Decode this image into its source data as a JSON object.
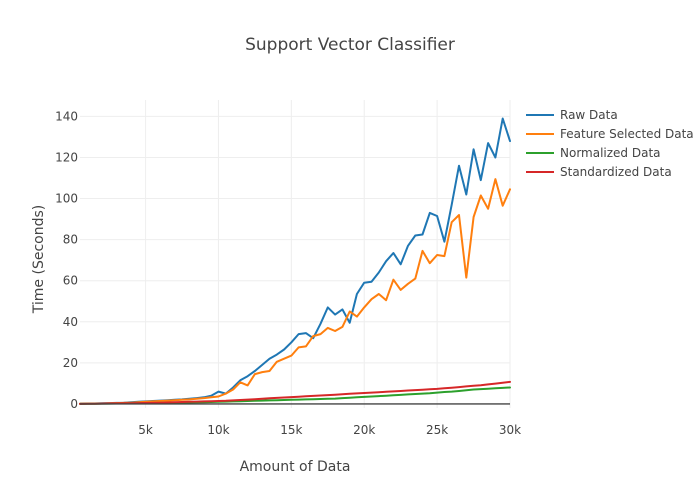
{
  "chart_data": {
    "type": "line",
    "title": "Support Vector Classifier",
    "xlabel": "Amount of Data",
    "ylabel": "Time (Seconds)",
    "xlim": [
      500,
      30000
    ],
    "ylim": [
      -2,
      148
    ],
    "x_ticks": [
      5000,
      10000,
      15000,
      20000,
      25000,
      30000
    ],
    "x_tick_labels": [
      "5k",
      "10k",
      "15k",
      "20k",
      "25k",
      "30k"
    ],
    "y_ticks": [
      0,
      20,
      40,
      60,
      80,
      100,
      120,
      140
    ],
    "y_tick_labels": [
      "0",
      "20",
      "40",
      "60",
      "80",
      "100",
      "120",
      "140"
    ],
    "grid": true,
    "legend_position": "right",
    "x": [
      500,
      1000,
      1500,
      2000,
      2500,
      3000,
      3500,
      4000,
      4500,
      5000,
      5500,
      6000,
      6500,
      7000,
      7500,
      8000,
      8500,
      9000,
      9500,
      10000,
      10500,
      11000,
      11500,
      12000,
      12500,
      13000,
      13500,
      14000,
      14500,
      15000,
      15500,
      16000,
      16500,
      17000,
      17500,
      18000,
      18500,
      19000,
      19500,
      20000,
      20500,
      21000,
      21500,
      22000,
      22500,
      23000,
      23500,
      24000,
      24500,
      25000,
      25500,
      26000,
      26500,
      27000,
      27500,
      28000,
      28500,
      29000,
      29500,
      30000
    ],
    "series": [
      {
        "name": "Raw Data",
        "color": "#1f77b4",
        "values": [
          0.1,
          0.15,
          0.2,
          0.3,
          0.4,
          0.5,
          0.6,
          0.8,
          1.0,
          1.2,
          1.4,
          1.6,
          1.8,
          2.0,
          2.2,
          2.5,
          2.8,
          3.2,
          4.0,
          6.0,
          5.0,
          8.0,
          11.5,
          13.5,
          16.0,
          19.0,
          22.0,
          24.0,
          26.5,
          30.0,
          34.0,
          34.5,
          32.0,
          39.0,
          47.0,
          43.5,
          46.0,
          39.5,
          53.5,
          59.0,
          59.5,
          64.0,
          69.5,
          73.5,
          68.0,
          77.0,
          82.0,
          82.5,
          93.0,
          91.5,
          79.0,
          97.0,
          116.0,
          102.0,
          124.0,
          109.0,
          127.0,
          120.0,
          139.0,
          128.0
        ]
      },
      {
        "name": "Feature Selected Data",
        "color": "#ff7f0e",
        "values": [
          0.1,
          0.12,
          0.15,
          0.2,
          0.3,
          0.4,
          0.5,
          0.6,
          0.8,
          1.0,
          1.2,
          1.4,
          1.6,
          1.8,
          2.0,
          2.2,
          2.5,
          2.8,
          3.2,
          3.6,
          5.0,
          7.0,
          10.5,
          9.0,
          14.5,
          15.5,
          16.0,
          20.5,
          22.0,
          23.5,
          27.5,
          28.0,
          33.0,
          34.0,
          37.0,
          35.5,
          37.5,
          45.0,
          42.5,
          47.0,
          51.0,
          53.5,
          50.5,
          60.5,
          55.5,
          58.5,
          61.0,
          74.5,
          68.5,
          72.5,
          72.0,
          88.5,
          92.0,
          61.5,
          91.0,
          101.5,
          95.0,
          109.5,
          96.5,
          104.5
        ]
      },
      {
        "name": "Normalized Data",
        "color": "#2ca02c",
        "values": [
          0.0,
          0.05,
          0.1,
          0.12,
          0.15,
          0.2,
          0.25,
          0.3,
          0.35,
          0.4,
          0.45,
          0.5,
          0.55,
          0.6,
          0.65,
          0.7,
          0.75,
          0.8,
          0.9,
          1.0,
          1.1,
          1.2,
          1.3,
          1.4,
          1.5,
          1.6,
          1.7,
          1.8,
          1.9,
          2.0,
          2.1,
          2.2,
          2.3,
          2.4,
          2.5,
          2.6,
          2.8,
          3.0,
          3.2,
          3.4,
          3.6,
          3.8,
          4.0,
          4.2,
          4.4,
          4.6,
          4.8,
          5.0,
          5.2,
          5.5,
          5.8,
          6.0,
          6.3,
          6.6,
          7.0,
          7.2,
          7.4,
          7.6,
          7.8,
          8.0
        ]
      },
      {
        "name": "Standardized Data",
        "color": "#d62728",
        "values": [
          0.0,
          0.05,
          0.1,
          0.15,
          0.2,
          0.25,
          0.3,
          0.35,
          0.4,
          0.45,
          0.5,
          0.6,
          0.7,
          0.8,
          0.9,
          1.0,
          1.1,
          1.2,
          1.3,
          1.4,
          1.5,
          1.7,
          1.9,
          2.1,
          2.3,
          2.5,
          2.7,
          2.9,
          3.1,
          3.3,
          3.5,
          3.7,
          3.9,
          4.1,
          4.3,
          4.5,
          4.7,
          4.9,
          5.1,
          5.3,
          5.5,
          5.7,
          5.9,
          6.1,
          6.3,
          6.5,
          6.7,
          6.9,
          7.1,
          7.3,
          7.6,
          7.9,
          8.2,
          8.5,
          8.8,
          9.1,
          9.5,
          9.9,
          10.3,
          10.7
        ]
      }
    ]
  }
}
